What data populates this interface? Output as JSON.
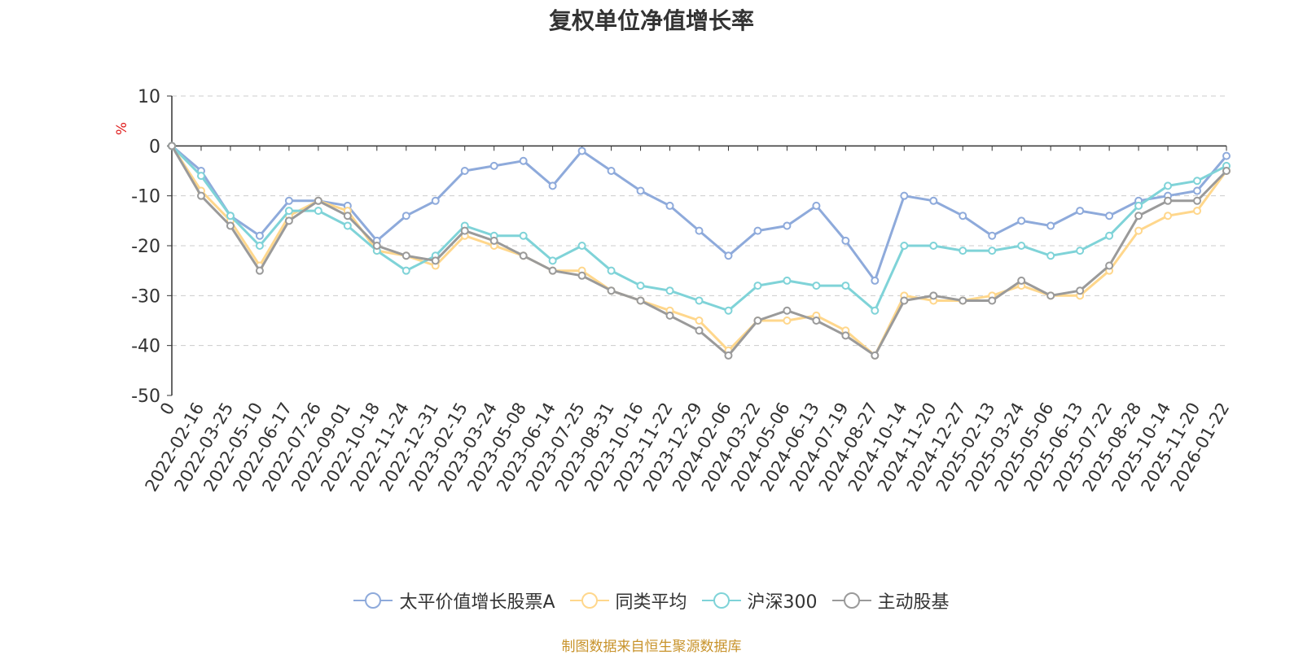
{
  "chart_data": {
    "type": "line",
    "title": "复权单位净值增长率",
    "ylabel": "%",
    "xlabel": "",
    "ylim": [
      -50,
      10
    ],
    "yticks": [
      10,
      0,
      -10,
      -20,
      -30,
      -40,
      -50
    ],
    "grid": true,
    "legend_position": "bottom",
    "categories": [
      "0",
      "2022-02-16",
      "2022-03-25",
      "2022-05-10",
      "2022-06-17",
      "2022-07-26",
      "2022-09-01",
      "2022-10-18",
      "2022-11-24",
      "2022-12-31",
      "2023-02-15",
      "2023-03-24",
      "2023-05-08",
      "2023-06-14",
      "2023-07-25",
      "2023-08-31",
      "2023-10-16",
      "2023-11-22",
      "2023-12-29",
      "2024-02-06",
      "2024-03-22",
      "2024-05-06",
      "2024-06-13",
      "2024-07-19",
      "2024-08-27",
      "2024-10-14",
      "2024-11-20",
      "2024-12-27",
      "2025-02-13",
      "2025-03-24",
      "2025-05-06",
      "2025-06-13",
      "2025-07-22",
      "2025-08-28",
      "2025-10-14",
      "2025-11-20",
      "2026-01-22"
    ],
    "series": [
      {
        "name": "太平价值增长股票A",
        "color": "#8eaadb",
        "values": [
          0,
          -5,
          -14,
          -18,
          -11,
          -11,
          -12,
          -19,
          -14,
          -11,
          -5,
          -4,
          -3,
          -8,
          -1,
          -5,
          -9,
          -12,
          -17,
          -22,
          -17,
          -16,
          -12,
          -19,
          -27,
          -10,
          -11,
          -14,
          -18,
          -15,
          -16,
          -13,
          -14,
          -11,
          -10,
          -9,
          -2
        ]
      },
      {
        "name": "同类平均",
        "color": "#ffd78c",
        "values": [
          0,
          -9,
          -15,
          -24,
          -14,
          -11,
          -13,
          -21,
          -22,
          -24,
          -18,
          -20,
          -22,
          -25,
          -25,
          -29,
          -31,
          -33,
          -35,
          -41,
          -35,
          -35,
          -34,
          -37,
          -42,
          -30,
          -31,
          -31,
          -30,
          -28,
          -30,
          -30,
          -25,
          -17,
          -14,
          -13,
          -5
        ]
      },
      {
        "name": "沪深300",
        "color": "#7fd3d8",
        "values": [
          0,
          -6,
          -14,
          -20,
          -13,
          -13,
          -16,
          -21,
          -25,
          -22,
          -16,
          -18,
          -18,
          -23,
          -20,
          -25,
          -28,
          -29,
          -31,
          -33,
          -28,
          -27,
          -28,
          -28,
          -33,
          -20,
          -20,
          -21,
          -21,
          -20,
          -22,
          -21,
          -18,
          -12,
          -8,
          -7,
          -4
        ]
      },
      {
        "name": "主动股基",
        "color": "#9a9a9a",
        "values": [
          0,
          -10,
          -16,
          -25,
          -15,
          -11,
          -14,
          -20,
          -22,
          -23,
          -17,
          -19,
          -22,
          -25,
          -26,
          -29,
          -31,
          -34,
          -37,
          -42,
          -35,
          -33,
          -35,
          -38,
          -42,
          -31,
          -30,
          -31,
          -31,
          -27,
          -30,
          -29,
          -24,
          -14,
          -11,
          -11,
          -5
        ]
      }
    ]
  },
  "source_note": "制图数据来自恒生聚源数据库"
}
